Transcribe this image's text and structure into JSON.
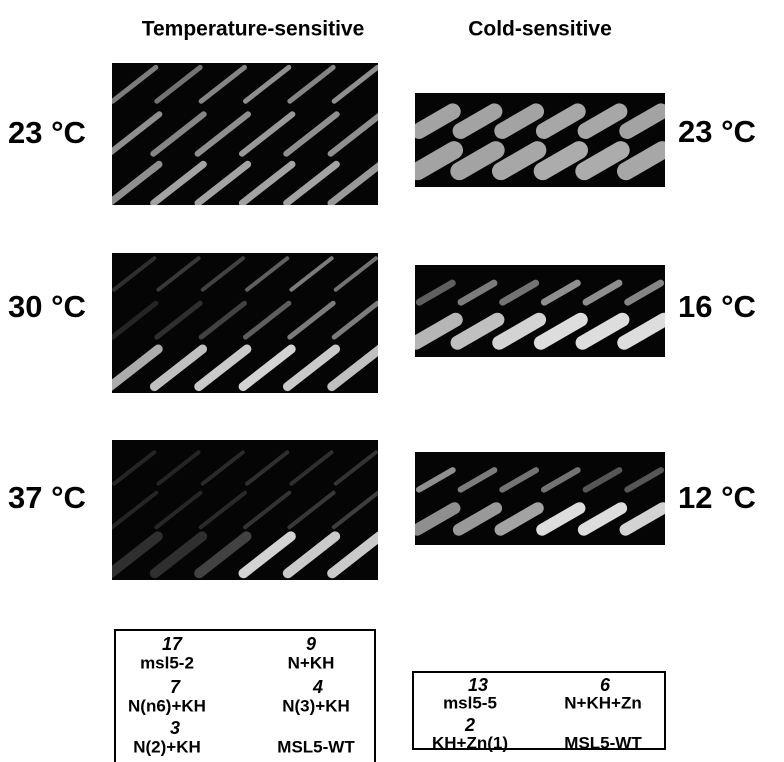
{
  "headers": {
    "left": "Temperature-sensitive",
    "right": "Cold-sensitive"
  },
  "left_panels": [
    {
      "label": "23 °C"
    },
    {
      "label": "30 °C"
    },
    {
      "label": "37 °C"
    }
  ],
  "right_panels": [
    {
      "label": "23 °C"
    },
    {
      "label": "16 °C"
    },
    {
      "label": "12 °C"
    }
  ],
  "legends": [
    {
      "entries": [
        {
          "number": "17",
          "name": "msl5-2"
        },
        {
          "number": "9",
          "name": "N+KH"
        },
        {
          "number": "7",
          "name": "N(n6)+KH"
        },
        {
          "number": "4",
          "name": "N(3)+KH"
        },
        {
          "number": "3",
          "name": "N(2)+KH"
        },
        {
          "name": "MSL5-WT"
        }
      ]
    },
    {
      "entries": [
        {
          "number": "13",
          "name": "msl5-5"
        },
        {
          "number": "6",
          "name": "N+KH+Zn"
        },
        {
          "number": "2",
          "name": "KH+Zn(1)"
        },
        {
          "name": "MSL5-WT"
        }
      ]
    }
  ]
}
